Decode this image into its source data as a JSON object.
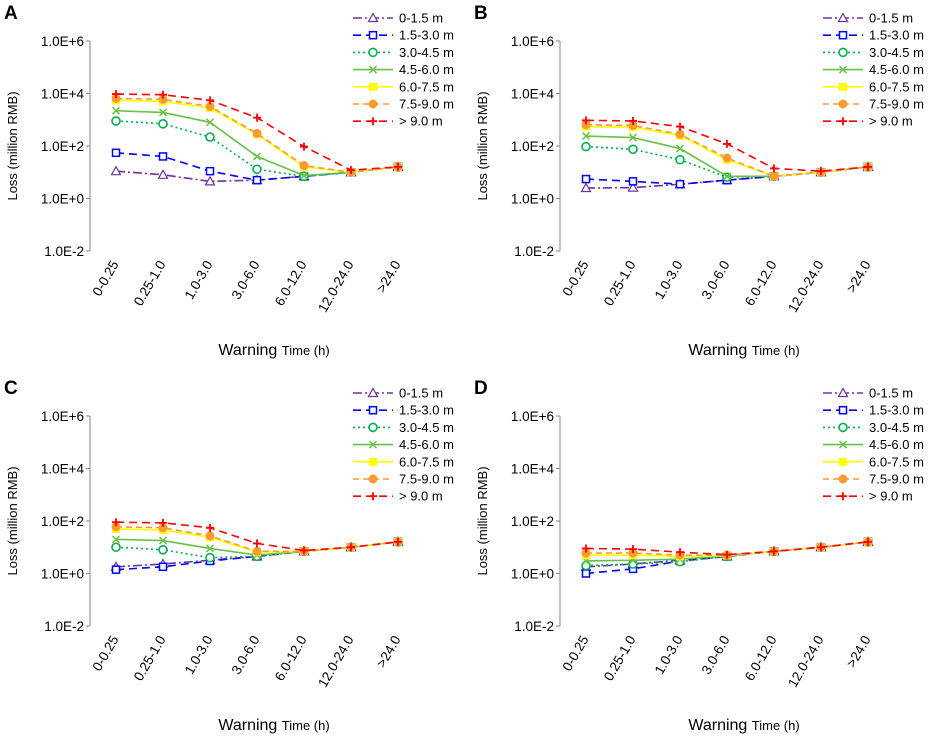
{
  "chart_data": [
    {
      "type": "line",
      "panel_label": "A",
      "title": "",
      "xlabel_main": "Warning",
      "xlabel_small": "Time (h)",
      "ylabel": "Loss (million RMB)",
      "yscale": "log",
      "ylim": [
        0.01,
        1000000
      ],
      "yticks": [
        "1.0E-2",
        "1.0E+0",
        "1.0E+2",
        "1.0E+4",
        "1.0E+6"
      ],
      "categories": [
        "0-0.25",
        "0.25-1.0",
        "1.0-3.0",
        "3.0-6.0",
        "6.0-12.0",
        "12.0-24.0",
        ">24.0"
      ],
      "legend_position": "top-right",
      "series": [
        {
          "name": "0-1.5 m",
          "values": [
            11,
            8,
            4.5,
            5,
            7,
            10,
            16
          ]
        },
        {
          "name": "1.5-3.0 m",
          "values": [
            55,
            40,
            11,
            5,
            7,
            10,
            16
          ]
        },
        {
          "name": "3.0-4.5 m",
          "values": [
            900,
            700,
            220,
            13,
            7,
            10,
            16
          ]
        },
        {
          "name": "4.5-6.0 m",
          "values": [
            2200,
            1900,
            800,
            40,
            7.5,
            10,
            16
          ]
        },
        {
          "name": "6.0-7.5 m",
          "values": [
            5500,
            5000,
            2800,
            280,
            16,
            10,
            16
          ]
        },
        {
          "name": "7.5-9.0 m",
          "values": [
            6500,
            6000,
            3200,
            300,
            18,
            10,
            16
          ]
        },
        {
          "name": "> 9.0 m",
          "values": [
            9500,
            9000,
            5500,
            1200,
            95,
            12,
            16
          ]
        }
      ]
    },
    {
      "type": "line",
      "panel_label": "B",
      "title": "",
      "xlabel_main": "Warning",
      "xlabel_small": "Time (h)",
      "ylabel": "Loss (million RMB)",
      "yscale": "log",
      "ylim": [
        0.01,
        1000000
      ],
      "yticks": [
        "1.0E-2",
        "1.0E+0",
        "1.0E+2",
        "1.0E+4",
        "1.0E+6"
      ],
      "categories": [
        "0-0.25",
        "0.25-1.0",
        "1.0-3.0",
        "3.0-6.0",
        "6.0-12.0",
        "12.0-24.0",
        ">24.0"
      ],
      "legend_position": "top-right",
      "series": [
        {
          "name": "0-1.5 m",
          "values": [
            2.5,
            2.6,
            3.5,
            5,
            7,
            10,
            16
          ]
        },
        {
          "name": "1.5-3.0 m",
          "values": [
            5.5,
            4.5,
            3.5,
            5,
            7,
            10,
            16
          ]
        },
        {
          "name": "3.0-4.5 m",
          "values": [
            95,
            75,
            30,
            6.5,
            7,
            10,
            16
          ]
        },
        {
          "name": "4.5-6.0 m",
          "values": [
            240,
            210,
            80,
            7,
            7,
            10,
            16
          ]
        },
        {
          "name": "6.0-7.5 m",
          "values": [
            550,
            520,
            250,
            30,
            7,
            10,
            16
          ]
        },
        {
          "name": "7.5-9.0 m",
          "values": [
            650,
            600,
            280,
            35,
            7,
            10,
            16
          ]
        },
        {
          "name": "> 9.0 m",
          "values": [
            950,
            900,
            550,
            120,
            14,
            11,
            16
          ]
        }
      ]
    },
    {
      "type": "line",
      "panel_label": "C",
      "title": "",
      "xlabel_main": "Warning",
      "xlabel_small": "Time (h)",
      "ylabel": "Loss (million RMB)",
      "yscale": "log",
      "ylim": [
        0.01,
        1000000
      ],
      "yticks": [
        "1.0E-2",
        "1.0E+0",
        "1.0E+2",
        "1.0E+4",
        "1.0E+6"
      ],
      "categories": [
        "0-0.25",
        "0.25-1.0",
        "1.0-3.0",
        "3.0-6.0",
        "6.0-12.0",
        "12.0-24.0",
        ">24.0"
      ],
      "legend_position": "top-right",
      "series": [
        {
          "name": "0-1.5 m",
          "values": [
            1.8,
            2.3,
            3.2,
            4.5,
            7,
            10,
            16
          ]
        },
        {
          "name": "1.5-3.0 m",
          "values": [
            1.4,
            1.8,
            3,
            4.5,
            7,
            10,
            16
          ]
        },
        {
          "name": "3.0-4.5 m",
          "values": [
            10,
            8,
            4,
            4.5,
            7,
            10,
            16
          ]
        },
        {
          "name": "4.5-6.0 m",
          "values": [
            20,
            18,
            9,
            5,
            7,
            10,
            16
          ]
        },
        {
          "name": "6.0-7.5 m",
          "values": [
            50,
            45,
            24,
            6.5,
            7,
            10,
            16
          ]
        },
        {
          "name": "7.5-9.0 m",
          "values": [
            60,
            55,
            27,
            7,
            7,
            10,
            16
          ]
        },
        {
          "name": "> 9.0 m",
          "values": [
            90,
            85,
            55,
            14,
            7.5,
            10,
            16
          ]
        }
      ]
    },
    {
      "type": "line",
      "panel_label": "D",
      "title": "",
      "xlabel_main": "Warning",
      "xlabel_small": "Time (h)",
      "ylabel": "Loss (million RMB)",
      "yscale": "log",
      "ylim": [
        0.01,
        1000000
      ],
      "yticks": [
        "1.0E-2",
        "1.0E+0",
        "1.0E+2",
        "1.0E+4",
        "1.0E+6"
      ],
      "categories": [
        "0-0.25",
        "0.25-1.0",
        "1.0-3.0",
        "3.0-6.0",
        "6.0-12.0",
        "12.0-24.0",
        ">24.0"
      ],
      "legend_position": "top-right",
      "series": [
        {
          "name": "0-1.5 m",
          "values": [
            1.8,
            2.3,
            3.2,
            4.5,
            7,
            10,
            16
          ]
        },
        {
          "name": "1.5-3.0 m",
          "values": [
            1,
            1.5,
            3,
            4.5,
            7,
            10,
            16
          ]
        },
        {
          "name": "3.0-4.5 m",
          "values": [
            2,
            2.3,
            2.8,
            4.5,
            7,
            10,
            16
          ]
        },
        {
          "name": "4.5-6.0 m",
          "values": [
            3,
            3.2,
            3.5,
            4.7,
            7,
            10,
            16
          ]
        },
        {
          "name": "6.0-7.5 m",
          "values": [
            5,
            5,
            4.5,
            4.8,
            7,
            10,
            16
          ]
        },
        {
          "name": "7.5-9.0 m",
          "values": [
            6,
            6,
            5,
            5,
            7,
            10,
            16
          ]
        },
        {
          "name": "> 9.0 m",
          "values": [
            9,
            8.5,
            6.5,
            5.2,
            7,
            10,
            16
          ]
        }
      ]
    }
  ],
  "series_styles": [
    {
      "color": "#7030a0",
      "dash": "9,3,2,3",
      "marker": "triangle"
    },
    {
      "color": "#0000ff",
      "dash": "8,5",
      "marker": "square"
    },
    {
      "color": "#00b050",
      "dash": "2,3",
      "marker": "circle"
    },
    {
      "color": "#66c244",
      "dash": "",
      "marker": "x"
    },
    {
      "color": "#ffff00",
      "dash": "",
      "marker": "filled-square"
    },
    {
      "color": "#ff9933",
      "dash": "6,4",
      "marker": "filled-circle"
    },
    {
      "color": "#ff0000",
      "dash": "8,5",
      "marker": "plus"
    }
  ]
}
